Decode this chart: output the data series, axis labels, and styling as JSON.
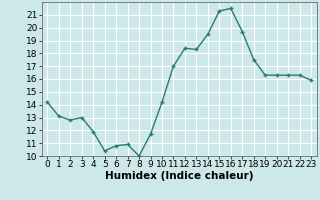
{
  "title": "",
  "xlabel": "Humidex (Indice chaleur)",
  "ylabel": "",
  "x": [
    0,
    1,
    2,
    3,
    4,
    5,
    6,
    7,
    8,
    9,
    10,
    11,
    12,
    13,
    14,
    15,
    16,
    17,
    18,
    19,
    20,
    21,
    22,
    23
  ],
  "y": [
    14.2,
    13.1,
    12.8,
    13.0,
    11.9,
    10.4,
    10.8,
    10.9,
    10.0,
    11.7,
    14.2,
    17.0,
    18.4,
    18.3,
    19.5,
    21.3,
    21.5,
    19.7,
    17.5,
    16.3,
    16.3,
    16.3,
    16.3,
    15.9
  ],
  "ylim": [
    10,
    22
  ],
  "yticks": [
    10,
    11,
    12,
    13,
    14,
    15,
    16,
    17,
    18,
    19,
    20,
    21
  ],
  "xticks": [
    0,
    1,
    2,
    3,
    4,
    5,
    6,
    7,
    8,
    9,
    10,
    11,
    12,
    13,
    14,
    15,
    16,
    17,
    18,
    19,
    20,
    21,
    22,
    23
  ],
  "line_color": "#2d7a6e",
  "marker": "+",
  "bg_color": "#cce8e8",
  "grid_color": "#ffffff",
  "axis_label_fontsize": 7.5,
  "tick_fontsize": 6.5
}
